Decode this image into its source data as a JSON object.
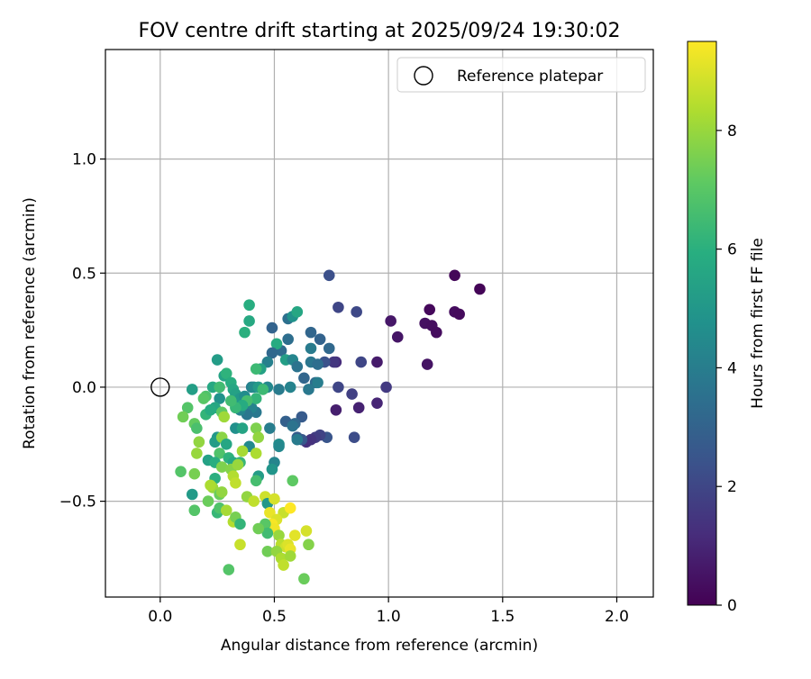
{
  "chart_data": {
    "type": "scatter",
    "title": "FOV centre drift starting at 2025/09/24 19:30:02",
    "xlabel": "Angular distance from reference (arcmin)",
    "ylabel": "Rotation from reference (arcmin)",
    "xlim": [
      -0.24,
      2.16
    ],
    "ylim": [
      -0.92,
      1.48
    ],
    "xticks": [
      0.0,
      0.5,
      1.0,
      1.5,
      2.0
    ],
    "xtick_labels": [
      "0.0",
      "0.5",
      "1.0",
      "1.5",
      "2.0"
    ],
    "yticks": [
      -0.5,
      0.0,
      0.5,
      1.0
    ],
    "ytick_labels": [
      "−0.5",
      "0.0",
      "0.5",
      "1.0"
    ],
    "grid": true,
    "legend": {
      "location": "top-right",
      "label": "Reference platepar"
    },
    "reference_point": {
      "x": 0.0,
      "y": 0.0
    },
    "colorbar": {
      "label": "Hours from first FF file",
      "colormap": "viridis",
      "min": 0,
      "max": 9.5,
      "ticks": [
        0,
        2,
        4,
        6,
        8
      ],
      "tick_labels": [
        "0",
        "2",
        "4",
        "6",
        "8"
      ]
    },
    "points": [
      {
        "x": 1.29,
        "y": 0.49,
        "t": 0.15
      },
      {
        "x": 1.4,
        "y": 0.43,
        "t": 0.1
      },
      {
        "x": 1.18,
        "y": 0.34,
        "t": 0.2
      },
      {
        "x": 1.29,
        "y": 0.33,
        "t": 0.3
      },
      {
        "x": 1.31,
        "y": 0.32,
        "t": 0.25
      },
      {
        "x": 1.16,
        "y": 0.28,
        "t": 0.4
      },
      {
        "x": 1.19,
        "y": 0.27,
        "t": 0.35
      },
      {
        "x": 1.21,
        "y": 0.24,
        "t": 0.3
      },
      {
        "x": 1.01,
        "y": 0.29,
        "t": 0.6
      },
      {
        "x": 1.04,
        "y": 0.22,
        "t": 0.55
      },
      {
        "x": 1.17,
        "y": 0.1,
        "t": 0.5
      },
      {
        "x": 0.95,
        "y": 0.11,
        "t": 0.7
      },
      {
        "x": 0.99,
        "y": 0.0,
        "t": 1.6
      },
      {
        "x": 0.95,
        "y": -0.07,
        "t": 1.0
      },
      {
        "x": 0.87,
        "y": -0.09,
        "t": 0.9
      },
      {
        "x": 0.77,
        "y": -0.1,
        "t": 0.8
      },
      {
        "x": 0.84,
        "y": -0.03,
        "t": 1.8
      },
      {
        "x": 0.78,
        "y": 0.0,
        "t": 2.0
      },
      {
        "x": 0.74,
        "y": 0.49,
        "t": 2.3
      },
      {
        "x": 0.78,
        "y": 0.35,
        "t": 2.0
      },
      {
        "x": 0.86,
        "y": 0.33,
        "t": 2.1
      },
      {
        "x": 0.88,
        "y": 0.11,
        "t": 2.0
      },
      {
        "x": 0.77,
        "y": 0.11,
        "t": 1.2
      },
      {
        "x": 0.76,
        "y": 0.11,
        "t": 1.5
      },
      {
        "x": 0.72,
        "y": 0.11,
        "t": 2.4
      },
      {
        "x": 0.85,
        "y": -0.22,
        "t": 2.2
      },
      {
        "x": 0.73,
        "y": -0.22,
        "t": 2.5
      },
      {
        "x": 0.7,
        "y": -0.21,
        "t": 1.9
      },
      {
        "x": 0.68,
        "y": -0.22,
        "t": 1.7
      },
      {
        "x": 0.66,
        "y": -0.23,
        "t": 1.4
      },
      {
        "x": 0.64,
        "y": -0.24,
        "t": 1.3
      },
      {
        "x": 0.62,
        "y": -0.23,
        "t": 2.6
      },
      {
        "x": 0.6,
        "y": -0.22,
        "t": 2.8
      },
      {
        "x": 0.6,
        "y": -0.23,
        "t": 3.9
      },
      {
        "x": 0.62,
        "y": -0.13,
        "t": 2.7
      },
      {
        "x": 0.55,
        "y": -0.15,
        "t": 2.9
      },
      {
        "x": 0.59,
        "y": -0.16,
        "t": 3.2
      },
      {
        "x": 0.58,
        "y": -0.17,
        "t": 3.6
      },
      {
        "x": 0.52,
        "y": -0.25,
        "t": 4.6
      },
      {
        "x": 0.52,
        "y": -0.26,
        "t": 4.4
      },
      {
        "x": 0.48,
        "y": -0.18,
        "t": 4.0
      },
      {
        "x": 0.42,
        "y": -0.11,
        "t": 3.8
      },
      {
        "x": 0.4,
        "y": -0.09,
        "t": 4.2
      },
      {
        "x": 0.38,
        "y": -0.12,
        "t": 3.7
      },
      {
        "x": 0.35,
        "y": -0.1,
        "t": 4.3
      },
      {
        "x": 0.66,
        "y": 0.24,
        "t": 3.1
      },
      {
        "x": 0.7,
        "y": 0.21,
        "t": 3.0
      },
      {
        "x": 0.74,
        "y": 0.17,
        "t": 3.2
      },
      {
        "x": 0.66,
        "y": 0.17,
        "t": 3.9
      },
      {
        "x": 0.56,
        "y": 0.21,
        "t": 3.4
      },
      {
        "x": 0.53,
        "y": 0.16,
        "t": 3.3
      },
      {
        "x": 0.49,
        "y": 0.26,
        "t": 3.0
      },
      {
        "x": 0.56,
        "y": 0.3,
        "t": 3.5
      },
      {
        "x": 0.58,
        "y": 0.31,
        "t": 4.8
      },
      {
        "x": 0.6,
        "y": 0.33,
        "t": 5.6
      },
      {
        "x": 0.51,
        "y": 0.19,
        "t": 5.8
      },
      {
        "x": 0.55,
        "y": 0.12,
        "t": 5.3
      },
      {
        "x": 0.58,
        "y": 0.12,
        "t": 4.3
      },
      {
        "x": 0.6,
        "y": 0.09,
        "t": 3.6
      },
      {
        "x": 0.66,
        "y": 0.11,
        "t": 3.7
      },
      {
        "x": 0.69,
        "y": 0.1,
        "t": 3.4
      },
      {
        "x": 0.63,
        "y": 0.04,
        "t": 3.1
      },
      {
        "x": 0.68,
        "y": 0.02,
        "t": 3.3
      },
      {
        "x": 0.69,
        "y": 0.02,
        "t": 4.0
      },
      {
        "x": 0.65,
        "y": -0.01,
        "t": 3.8
      },
      {
        "x": 0.57,
        "y": 0.0,
        "t": 4.2
      },
      {
        "x": 0.52,
        "y": -0.01,
        "t": 3.9
      },
      {
        "x": 0.47,
        "y": 0.0,
        "t": 4.4
      },
      {
        "x": 0.49,
        "y": 0.15,
        "t": 3.2
      },
      {
        "x": 0.47,
        "y": 0.11,
        "t": 4.1
      },
      {
        "x": 0.44,
        "y": 0.08,
        "t": 5.4
      },
      {
        "x": 0.42,
        "y": 0.08,
        "t": 6.4
      },
      {
        "x": 0.39,
        "y": 0.36,
        "t": 5.9
      },
      {
        "x": 0.39,
        "y": 0.29,
        "t": 5.7
      },
      {
        "x": 0.37,
        "y": 0.24,
        "t": 6.0
      },
      {
        "x": 0.25,
        "y": 0.12,
        "t": 5.2
      },
      {
        "x": 0.28,
        "y": 0.05,
        "t": 5.5
      },
      {
        "x": 0.29,
        "y": 0.06,
        "t": 6.1
      },
      {
        "x": 0.23,
        "y": 0.0,
        "t": 5.7
      },
      {
        "x": 0.26,
        "y": 0.0,
        "t": 6.5
      },
      {
        "x": 0.31,
        "y": 0.02,
        "t": 5.9
      },
      {
        "x": 0.32,
        "y": -0.01,
        "t": 5.6
      },
      {
        "x": 0.33,
        "y": -0.03,
        "t": 5.4
      },
      {
        "x": 0.35,
        "y": -0.05,
        "t": 5.0
      },
      {
        "x": 0.37,
        "y": -0.04,
        "t": 4.6
      },
      {
        "x": 0.4,
        "y": 0.0,
        "t": 4.1
      },
      {
        "x": 0.41,
        "y": 0.0,
        "t": 4.5
      },
      {
        "x": 0.43,
        "y": 0.0,
        "t": 5.1
      },
      {
        "x": 0.45,
        "y": -0.01,
        "t": 6.4
      },
      {
        "x": 0.42,
        "y": -0.05,
        "t": 6.2
      },
      {
        "x": 0.38,
        "y": -0.06,
        "t": 6.6
      },
      {
        "x": 0.36,
        "y": -0.08,
        "t": 5.8
      },
      {
        "x": 0.33,
        "y": -0.09,
        "t": 6.3
      },
      {
        "x": 0.31,
        "y": -0.06,
        "t": 6.5
      },
      {
        "x": 0.26,
        "y": -0.05,
        "t": 4.8
      },
      {
        "x": 0.24,
        "y": -0.09,
        "t": 5.6
      },
      {
        "x": 0.2,
        "y": -0.04,
        "t": 6.8
      },
      {
        "x": 0.19,
        "y": -0.05,
        "t": 7.0
      },
      {
        "x": 0.14,
        "y": -0.01,
        "t": 5.3
      },
      {
        "x": 0.12,
        "y": -0.09,
        "t": 6.9
      },
      {
        "x": 0.1,
        "y": -0.13,
        "t": 7.4
      },
      {
        "x": 0.15,
        "y": -0.16,
        "t": 7.2
      },
      {
        "x": 0.16,
        "y": -0.18,
        "t": 6.7
      },
      {
        "x": 0.2,
        "y": -0.12,
        "t": 6.2
      },
      {
        "x": 0.22,
        "y": -0.1,
        "t": 5.8
      },
      {
        "x": 0.27,
        "y": -0.11,
        "t": 7.1
      },
      {
        "x": 0.28,
        "y": -0.13,
        "t": 8.1
      },
      {
        "x": 0.33,
        "y": -0.18,
        "t": 4.7
      },
      {
        "x": 0.36,
        "y": -0.18,
        "t": 5.5
      },
      {
        "x": 0.42,
        "y": -0.18,
        "t": 7.6
      },
      {
        "x": 0.43,
        "y": -0.22,
        "t": 7.9
      },
      {
        "x": 0.39,
        "y": -0.26,
        "t": 4.5
      },
      {
        "x": 0.36,
        "y": -0.28,
        "t": 8.2
      },
      {
        "x": 0.42,
        "y": -0.29,
        "t": 8.3
      },
      {
        "x": 0.25,
        "y": -0.22,
        "t": 5.0
      },
      {
        "x": 0.24,
        "y": -0.24,
        "t": 5.2
      },
      {
        "x": 0.27,
        "y": -0.22,
        "t": 7.8
      },
      {
        "x": 0.29,
        "y": -0.25,
        "t": 5.6
      },
      {
        "x": 0.26,
        "y": -0.29,
        "t": 6.8
      },
      {
        "x": 0.21,
        "y": -0.32,
        "t": 5.4
      },
      {
        "x": 0.24,
        "y": -0.33,
        "t": 5.9
      },
      {
        "x": 0.27,
        "y": -0.35,
        "t": 7.6
      },
      {
        "x": 0.3,
        "y": -0.31,
        "t": 6.1
      },
      {
        "x": 0.32,
        "y": -0.33,
        "t": 5.7
      },
      {
        "x": 0.35,
        "y": -0.33,
        "t": 6.3
      },
      {
        "x": 0.31,
        "y": -0.36,
        "t": 7.7
      },
      {
        "x": 0.34,
        "y": -0.34,
        "t": 8.0
      },
      {
        "x": 0.32,
        "y": -0.39,
        "t": 8.4
      },
      {
        "x": 0.17,
        "y": -0.24,
        "t": 7.9
      },
      {
        "x": 0.16,
        "y": -0.29,
        "t": 8.0
      },
      {
        "x": 0.09,
        "y": -0.37,
        "t": 6.9
      },
      {
        "x": 0.15,
        "y": -0.38,
        "t": 7.5
      },
      {
        "x": 0.24,
        "y": -0.4,
        "t": 6.0
      },
      {
        "x": 0.23,
        "y": -0.44,
        "t": 8.0
      },
      {
        "x": 0.22,
        "y": -0.43,
        "t": 8.3
      },
      {
        "x": 0.26,
        "y": -0.47,
        "t": 7.3
      },
      {
        "x": 0.27,
        "y": -0.46,
        "t": 7.9
      },
      {
        "x": 0.33,
        "y": -0.42,
        "t": 8.6
      },
      {
        "x": 0.43,
        "y": -0.39,
        "t": 5.2
      },
      {
        "x": 0.42,
        "y": -0.41,
        "t": 6.6
      },
      {
        "x": 0.5,
        "y": -0.33,
        "t": 4.3
      },
      {
        "x": 0.49,
        "y": -0.36,
        "t": 4.9
      },
      {
        "x": 0.58,
        "y": -0.41,
        "t": 7.1
      },
      {
        "x": 0.38,
        "y": -0.48,
        "t": 7.9
      },
      {
        "x": 0.41,
        "y": -0.5,
        "t": 8.6
      },
      {
        "x": 0.46,
        "y": -0.48,
        "t": 8.8
      },
      {
        "x": 0.47,
        "y": -0.51,
        "t": 5.0
      },
      {
        "x": 0.5,
        "y": -0.49,
        "t": 8.9
      },
      {
        "x": 0.48,
        "y": -0.55,
        "t": 9.2
      },
      {
        "x": 0.54,
        "y": -0.55,
        "t": 8.7
      },
      {
        "x": 0.51,
        "y": -0.58,
        "t": 9.0
      },
      {
        "x": 0.49,
        "y": -0.6,
        "t": 9.4
      },
      {
        "x": 0.5,
        "y": -0.62,
        "t": 9.3
      },
      {
        "x": 0.46,
        "y": -0.6,
        "t": 7.0
      },
      {
        "x": 0.47,
        "y": -0.64,
        "t": 6.5
      },
      {
        "x": 0.43,
        "y": -0.62,
        "t": 7.4
      },
      {
        "x": 0.14,
        "y": -0.47,
        "t": 5.1
      },
      {
        "x": 0.15,
        "y": -0.54,
        "t": 6.9
      },
      {
        "x": 0.21,
        "y": -0.5,
        "t": 7.3
      },
      {
        "x": 0.25,
        "y": -0.55,
        "t": 6.3
      },
      {
        "x": 0.26,
        "y": -0.53,
        "t": 6.8
      },
      {
        "x": 0.29,
        "y": -0.54,
        "t": 8.2
      },
      {
        "x": 0.32,
        "y": -0.59,
        "t": 8.4
      },
      {
        "x": 0.33,
        "y": -0.57,
        "t": 7.5
      },
      {
        "x": 0.35,
        "y": -0.6,
        "t": 6.2
      },
      {
        "x": 0.57,
        "y": -0.53,
        "t": 9.5
      },
      {
        "x": 0.59,
        "y": -0.65,
        "t": 9.1
      },
      {
        "x": 0.64,
        "y": -0.63,
        "t": 8.9
      },
      {
        "x": 0.52,
        "y": -0.65,
        "t": 8.0
      },
      {
        "x": 0.53,
        "y": -0.69,
        "t": 8.5
      },
      {
        "x": 0.55,
        "y": -0.7,
        "t": 8.8
      },
      {
        "x": 0.56,
        "y": -0.69,
        "t": 9.0
      },
      {
        "x": 0.57,
        "y": -0.71,
        "t": 9.2
      },
      {
        "x": 0.35,
        "y": -0.69,
        "t": 8.7
      },
      {
        "x": 0.47,
        "y": -0.72,
        "t": 7.4
      },
      {
        "x": 0.51,
        "y": -0.72,
        "t": 7.9
      },
      {
        "x": 0.53,
        "y": -0.75,
        "t": 8.3
      },
      {
        "x": 0.54,
        "y": -0.78,
        "t": 8.6
      },
      {
        "x": 0.57,
        "y": -0.74,
        "t": 8.1
      },
      {
        "x": 0.65,
        "y": -0.69,
        "t": 7.7
      },
      {
        "x": 0.3,
        "y": -0.8,
        "t": 6.9
      },
      {
        "x": 0.63,
        "y": -0.84,
        "t": 7.3
      }
    ]
  }
}
